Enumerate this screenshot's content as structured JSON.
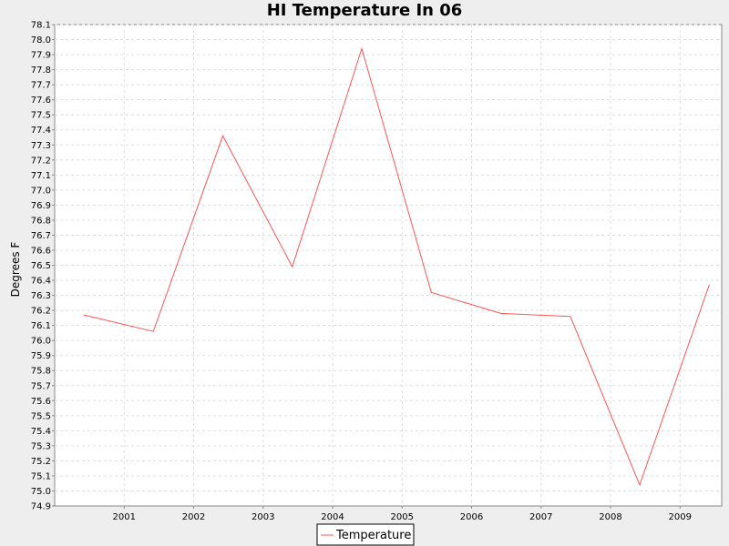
{
  "chart_data": {
    "type": "line",
    "title": "HI Temperature In 06",
    "xlabel": "",
    "ylabel": "Degrees F",
    "x_tick_labels": [
      "2001",
      "2002",
      "2003",
      "2004",
      "2005",
      "2006",
      "2007",
      "2008",
      "2009"
    ],
    "xlim": [
      2000.0,
      2009.6
    ],
    "ylim": [
      74.9,
      78.1
    ],
    "y_tick_step": 0.1,
    "grid": true,
    "legend_position": "bottom",
    "series": [
      {
        "name": "Temperature",
        "color": "#ff5555",
        "x": [
          2000.42,
          2001.42,
          2002.42,
          2003.42,
          2004.42,
          2005.42,
          2006.42,
          2007.42,
          2008.42,
          2009.42
        ],
        "y": [
          76.17,
          76.06,
          77.36,
          76.49,
          77.94,
          76.32,
          76.18,
          76.16,
          75.04,
          76.37
        ]
      }
    ]
  }
}
